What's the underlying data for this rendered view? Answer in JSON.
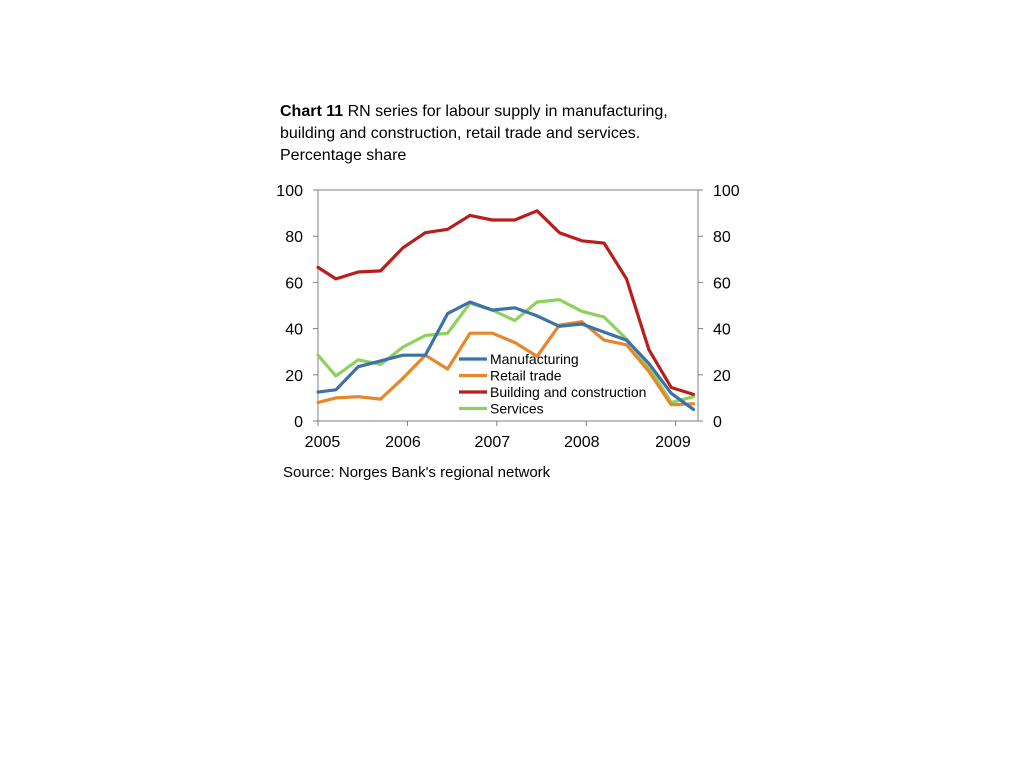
{
  "title": {
    "label": "Chart 11",
    "text": " RN series for labour supply in manufacturing, building and construction, retail trade and services. Percentage share"
  },
  "source": "Source: Norges Bank's regional network",
  "chart_data": {
    "type": "line",
    "title": "Chart 11 RN series for labour supply in manufacturing, building and construction, retail trade and services. Percentage share",
    "xlabel": "",
    "ylabel": "",
    "xlim": [
      2005,
      2009.25
    ],
    "ylim": [
      0,
      100
    ],
    "yticks": [
      0,
      20,
      40,
      60,
      80,
      100
    ],
    "xtick_labels": [
      "2005",
      "2006",
      "2007",
      "2008",
      "2009"
    ],
    "axes": "left-and-right",
    "grid": false,
    "legend": "lower-middle",
    "x": [
      2005.0,
      2005.2,
      2005.45,
      2005.7,
      2005.95,
      2006.2,
      2006.45,
      2006.7,
      2006.95,
      2007.2,
      2007.45,
      2007.7,
      2007.95,
      2008.2,
      2008.45,
      2008.7,
      2008.95,
      2009.2
    ],
    "series": [
      {
        "name": "Manufacturing",
        "color": "#3c72a8",
        "values": [
          12.5,
          13.5,
          23.5,
          26,
          28.5,
          28.5,
          46.5,
          51.5,
          48,
          49,
          45.5,
          41,
          42,
          38.5,
          35,
          25,
          12,
          5
        ]
      },
      {
        "name": "Retail trade",
        "color": "#e8862a",
        "values": [
          8,
          10,
          10.5,
          9.5,
          18.5,
          28.5,
          22.5,
          38,
          38,
          34,
          28,
          41.5,
          43,
          35,
          33,
          21.5,
          7,
          7.5
        ]
      },
      {
        "name": "Building and construction",
        "color": "#b81f1a",
        "values": [
          66.5,
          61.5,
          64.5,
          65,
          75,
          81.5,
          83,
          89,
          87,
          87,
          91,
          81.5,
          78,
          77,
          61.5,
          31,
          14.5,
          11.5
        ]
      },
      {
        "name": "Services",
        "color": "#8ed15c",
        "values": [
          28.5,
          19.5,
          26.5,
          24.5,
          32,
          37,
          38,
          51,
          48,
          43.5,
          51.5,
          52.5,
          47.5,
          45,
          35.5,
          23.5,
          8,
          10.5
        ]
      }
    ]
  }
}
